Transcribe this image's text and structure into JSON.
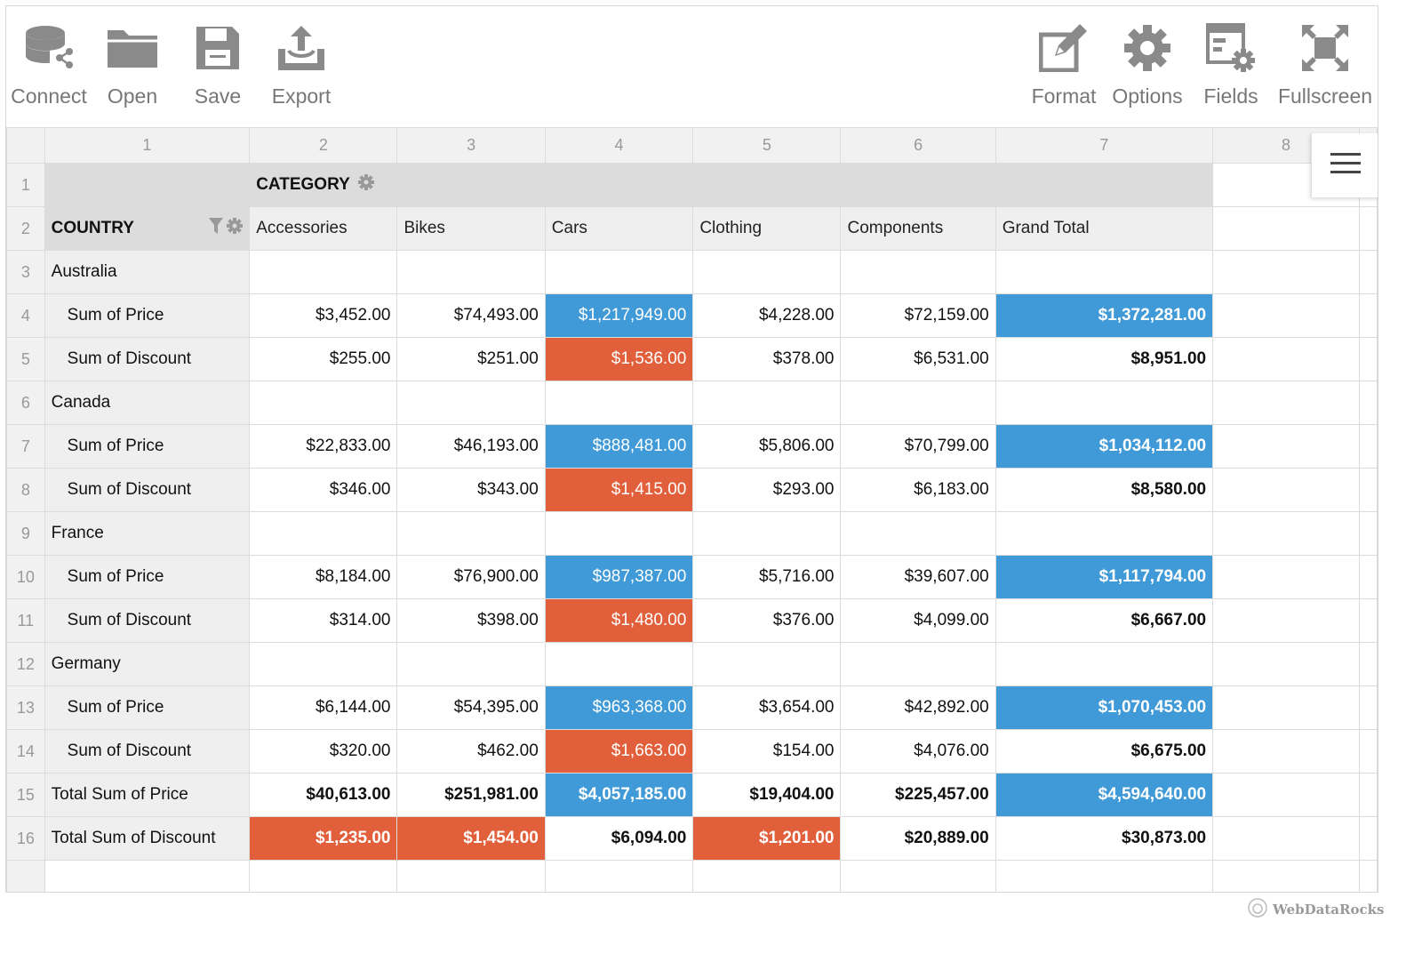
{
  "toolbar": {
    "left": [
      {
        "label": "Connect",
        "icon": "database-icon"
      },
      {
        "label": "Open",
        "icon": "folder-icon"
      },
      {
        "label": "Save",
        "icon": "floppy-icon"
      },
      {
        "label": "Export",
        "icon": "export-icon"
      }
    ],
    "right": [
      {
        "label": "Format",
        "icon": "edit-icon"
      },
      {
        "label": "Options",
        "icon": "gear-icon"
      },
      {
        "label": "Fields",
        "icon": "fields-icon"
      },
      {
        "label": "Fullscreen",
        "icon": "fullscreen-icon"
      }
    ]
  },
  "grid": {
    "column_numbers": [
      "1",
      "2",
      "3",
      "4",
      "5",
      "6",
      "7",
      "8"
    ],
    "row_numbers": [
      "1",
      "2",
      "3",
      "4",
      "5",
      "6",
      "7",
      "8",
      "9",
      "10",
      "11",
      "12",
      "13",
      "14",
      "15",
      "16"
    ],
    "column_field": "CATEGORY",
    "row_field": "COUNTRY",
    "column_headers": [
      "Accessories",
      "Bikes",
      "Cars",
      "Clothing",
      "Components",
      "Grand Total"
    ],
    "rows": [
      {
        "label": "Australia",
        "type": "group",
        "cells": []
      },
      {
        "label": "Sum of Price",
        "type": "measure",
        "cells": [
          "$3,452.00",
          "$74,493.00",
          "$1,217,949.00",
          "$4,228.00",
          "$72,159.00",
          "$1,372,281.00"
        ]
      },
      {
        "label": "Sum of Discount",
        "type": "measure",
        "cells": [
          "$255.00",
          "$251.00",
          "$1,536.00",
          "$378.00",
          "$6,531.00",
          "$8,951.00"
        ]
      },
      {
        "label": "Canada",
        "type": "group",
        "cells": []
      },
      {
        "label": "Sum of Price",
        "type": "measure",
        "cells": [
          "$22,833.00",
          "$46,193.00",
          "$888,481.00",
          "$5,806.00",
          "$70,799.00",
          "$1,034,112.00"
        ]
      },
      {
        "label": "Sum of Discount",
        "type": "measure",
        "cells": [
          "$346.00",
          "$343.00",
          "$1,415.00",
          "$293.00",
          "$6,183.00",
          "$8,580.00"
        ]
      },
      {
        "label": "France",
        "type": "group",
        "cells": []
      },
      {
        "label": "Sum of Price",
        "type": "measure",
        "cells": [
          "$8,184.00",
          "$76,900.00",
          "$987,387.00",
          "$5,716.00",
          "$39,607.00",
          "$1,117,794.00"
        ]
      },
      {
        "label": "Sum of Discount",
        "type": "measure",
        "cells": [
          "$314.00",
          "$398.00",
          "$1,480.00",
          "$376.00",
          "$4,099.00",
          "$6,667.00"
        ]
      },
      {
        "label": "Germany",
        "type": "group",
        "cells": []
      },
      {
        "label": "Sum of Price",
        "type": "measure",
        "cells": [
          "$6,144.00",
          "$54,395.00",
          "$963,368.00",
          "$3,654.00",
          "$42,892.00",
          "$1,070,453.00"
        ]
      },
      {
        "label": "Sum of Discount",
        "type": "measure",
        "cells": [
          "$320.00",
          "$462.00",
          "$1,663.00",
          "$154.00",
          "$4,076.00",
          "$6,675.00"
        ]
      },
      {
        "label": "Total Sum of Price",
        "type": "total",
        "cells": [
          "$40,613.00",
          "$251,981.00",
          "$4,057,185.00",
          "$19,404.00",
          "$225,457.00",
          "$4,594,640.00"
        ]
      },
      {
        "label": "Total Sum of Discount",
        "type": "total",
        "cells": [
          "$1,235.00",
          "$1,454.00",
          "$6,094.00",
          "$1,201.00",
          "$20,889.00",
          "$30,873.00"
        ]
      }
    ]
  },
  "conditional_formatting": {
    "blue": "#409ad7",
    "red": "#e25f3b",
    "highlights": [
      {
        "row": 1,
        "cols": [
          2,
          5
        ],
        "color": "blue"
      },
      {
        "row": 2,
        "cols": [
          2
        ],
        "color": "red"
      },
      {
        "row": 4,
        "cols": [
          2,
          5
        ],
        "color": "blue"
      },
      {
        "row": 5,
        "cols": [
          2
        ],
        "color": "red"
      },
      {
        "row": 7,
        "cols": [
          2,
          5
        ],
        "color": "blue"
      },
      {
        "row": 8,
        "cols": [
          2
        ],
        "color": "red"
      },
      {
        "row": 10,
        "cols": [
          2,
          5
        ],
        "color": "blue"
      },
      {
        "row": 11,
        "cols": [
          2
        ],
        "color": "red"
      },
      {
        "row": 12,
        "cols": [
          2,
          5
        ],
        "color": "blue"
      },
      {
        "row": 13,
        "cols": [
          0,
          1,
          3
        ],
        "color": "red"
      }
    ]
  },
  "branding": {
    "name": "WebDataRocks"
  }
}
